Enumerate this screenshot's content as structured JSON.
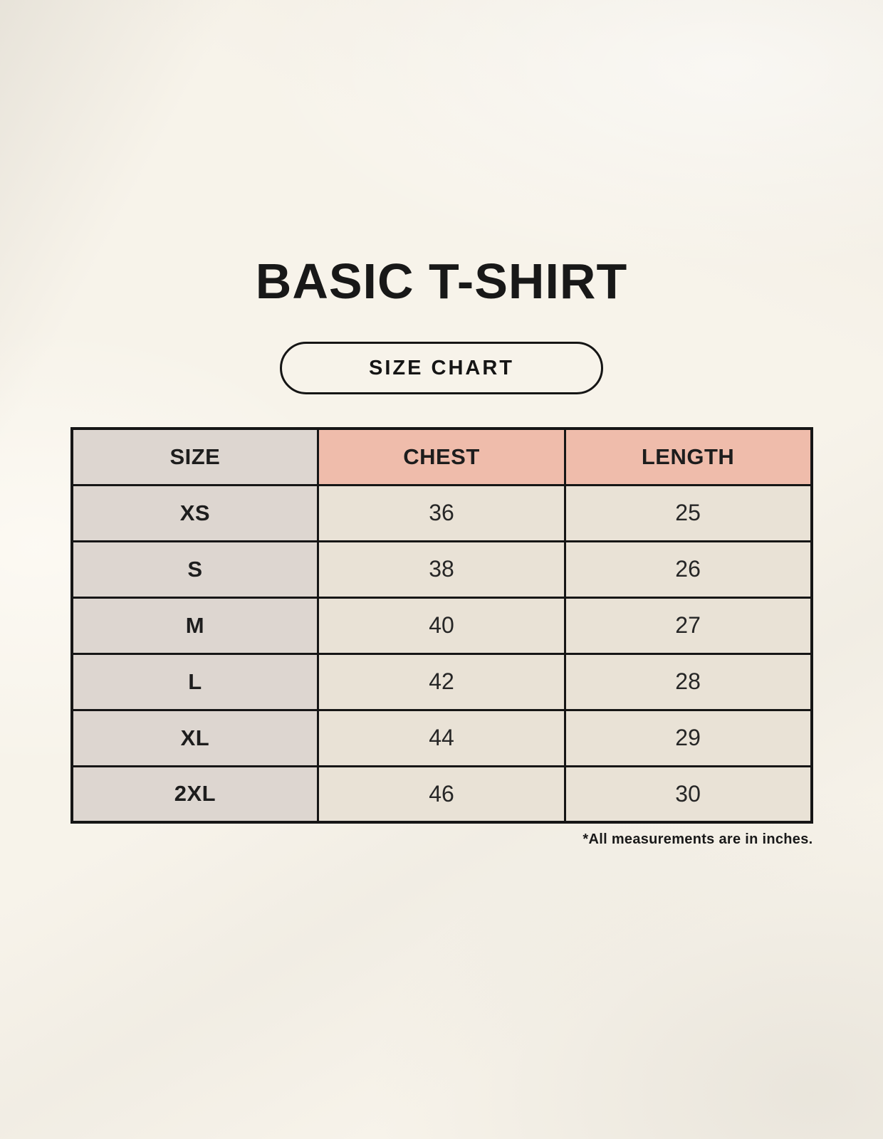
{
  "page": {
    "title": "BASIC T-SHIRT",
    "size_chart_button_label": "SIZE CHART",
    "footnote": "*All measurements are in inches."
  },
  "colors": {
    "page_background": "#f7f3ea",
    "header_pink": "#efbcab",
    "size_column_gray": "#ddd6d0",
    "data_cell_cream": "#e9e2d6",
    "table_border": "#161616",
    "text": "#1d1d1d"
  },
  "chart_data": {
    "type": "table",
    "title": "BASIC T-SHIRT",
    "columns": [
      "SIZE",
      "CHEST",
      "LENGTH"
    ],
    "rows": [
      [
        "XS",
        "36",
        "25"
      ],
      [
        "S",
        "38",
        "26"
      ],
      [
        "M",
        "40",
        "27"
      ],
      [
        "L",
        "42",
        "28"
      ],
      [
        "XL",
        "44",
        "29"
      ],
      [
        "2XL",
        "46",
        "30"
      ]
    ],
    "units": "inches",
    "note": "*All measurements are in inches."
  }
}
